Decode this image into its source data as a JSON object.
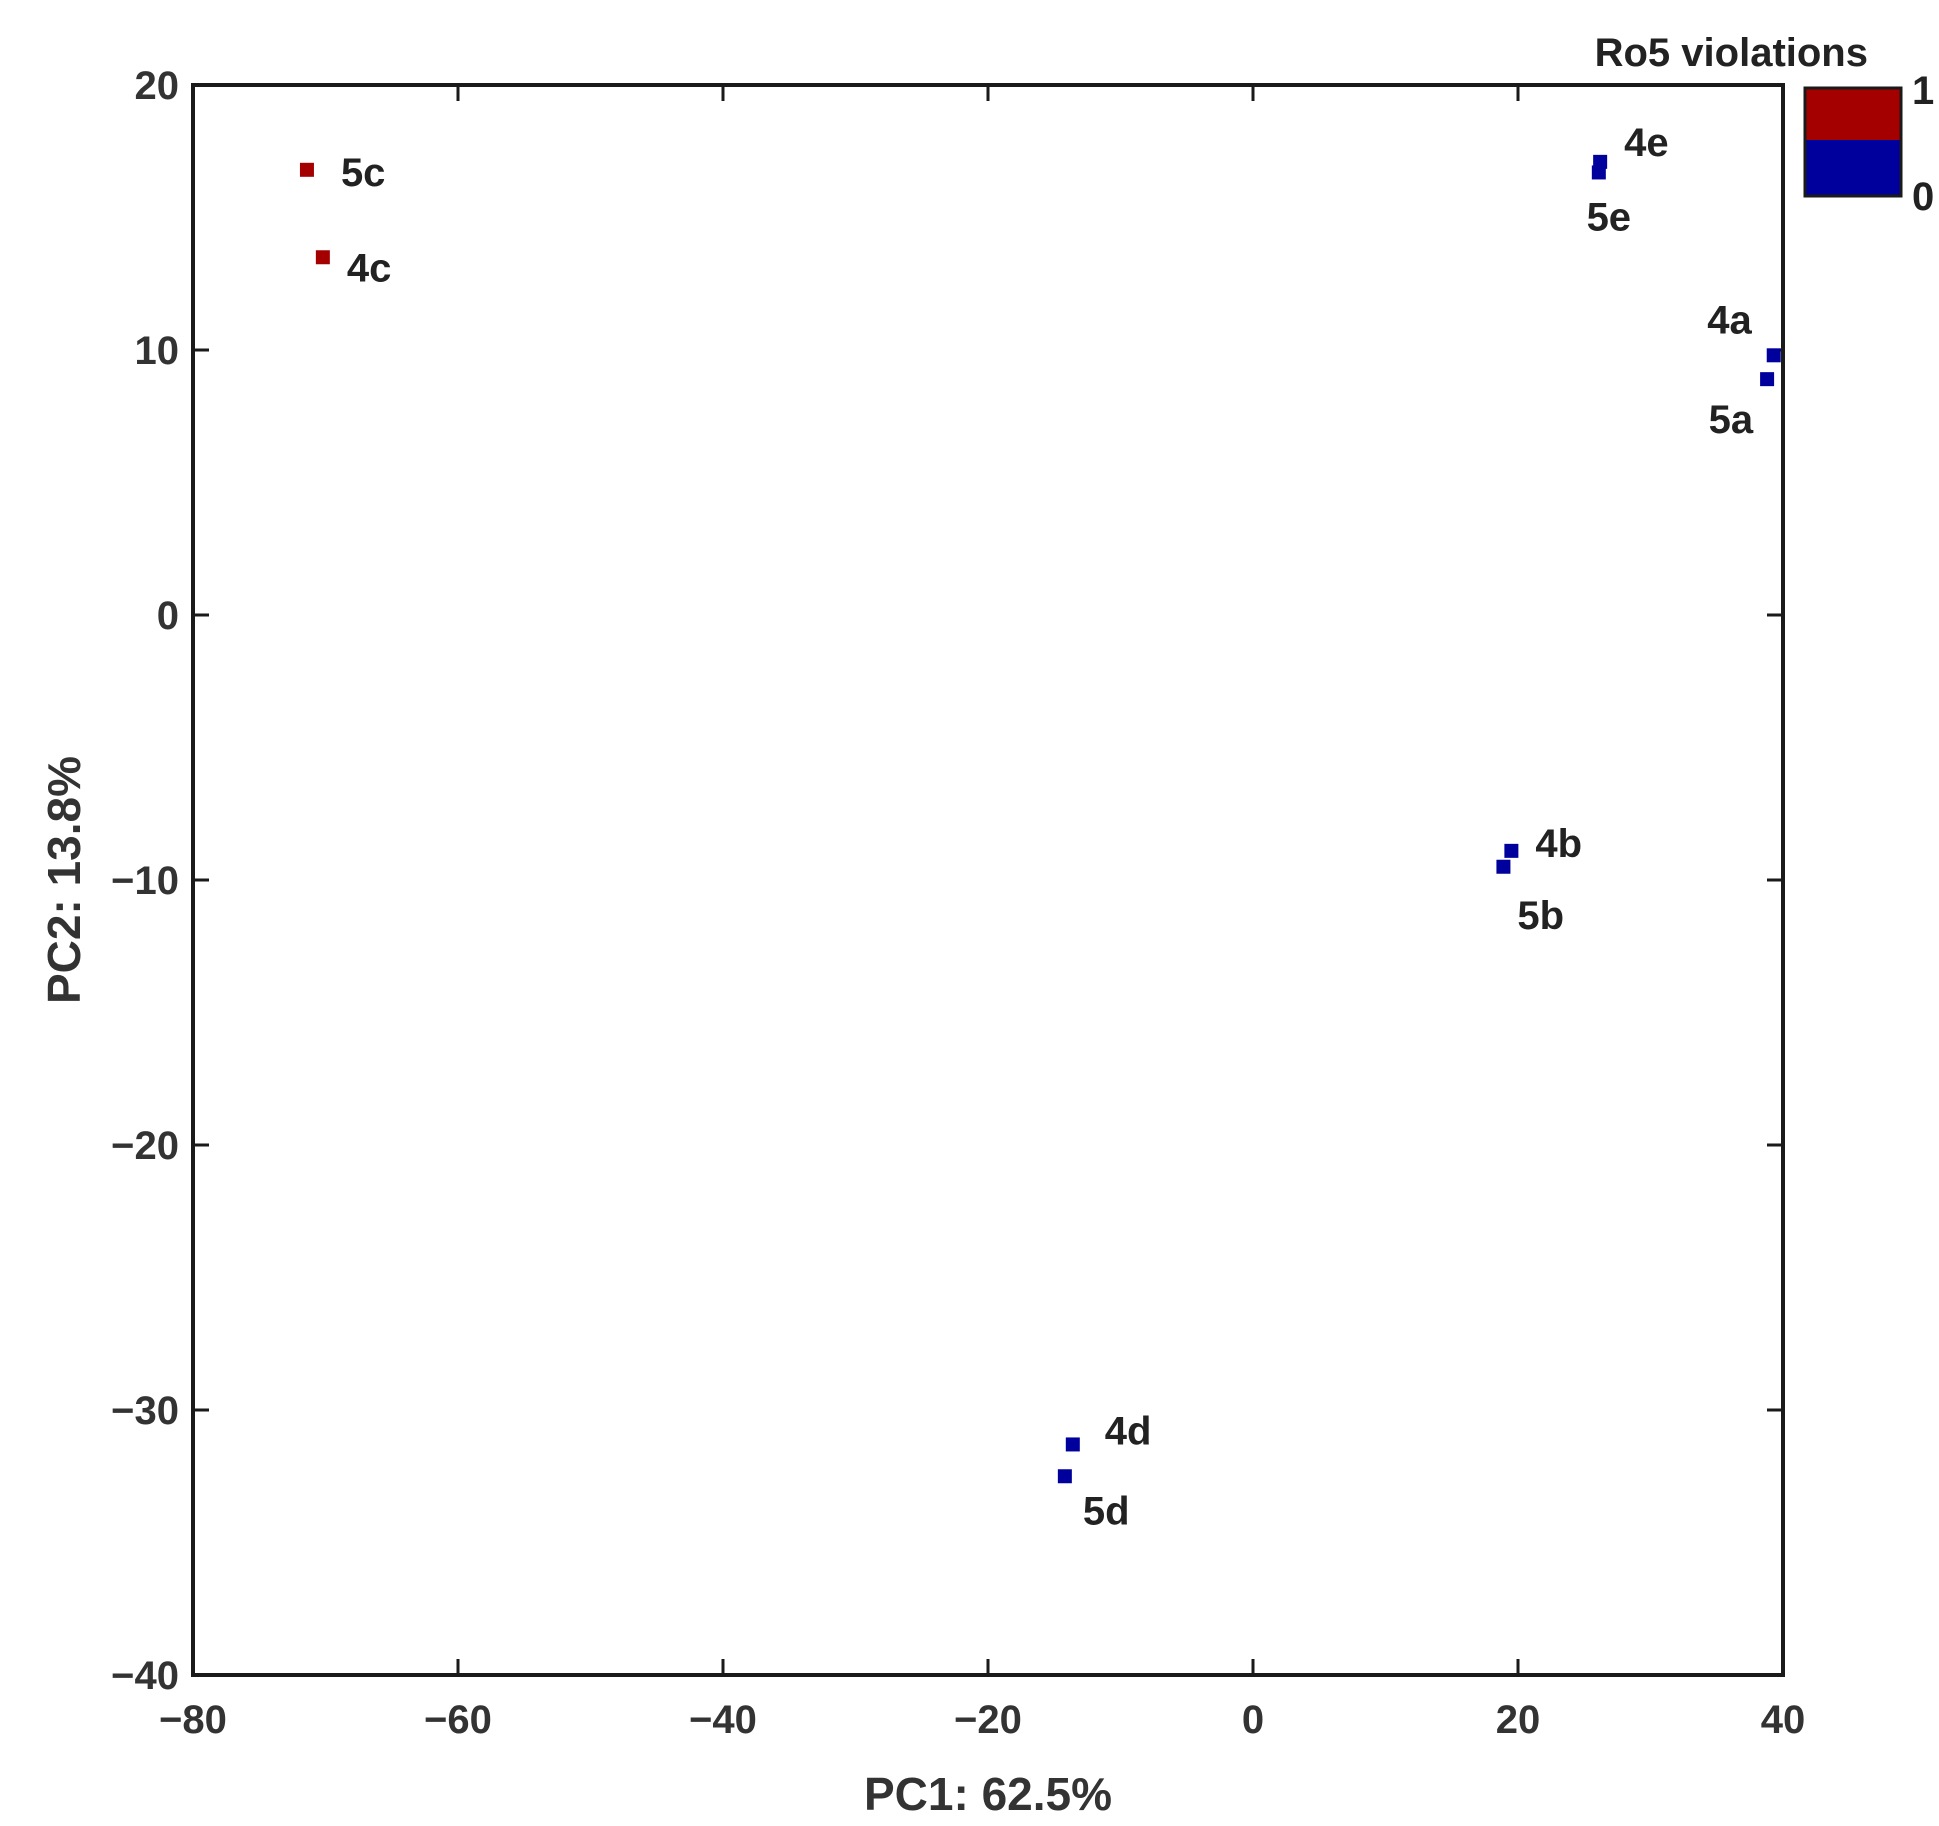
{
  "chart_data": {
    "type": "scatter",
    "xlabel": "PC1: 62.5%",
    "ylabel": "PC2: 13.8%",
    "xlim": [
      -80,
      40
    ],
    "ylim": [
      -40,
      20
    ],
    "xticks": [
      -80,
      -60,
      -40,
      -20,
      0,
      20,
      40
    ],
    "yticks": [
      20,
      10,
      0,
      -10,
      -20,
      -30,
      -40
    ],
    "xtick_labels": [
      "−80",
      "−60",
      "−40",
      "−20",
      "0",
      "20",
      "40"
    ],
    "ytick_labels": [
      "20",
      "10",
      "0",
      "−10",
      "−20",
      "−30",
      "−40"
    ],
    "grid": false,
    "colorbar": {
      "title": "Ro5 violations",
      "ticks": [
        "1",
        "0"
      ],
      "colors": {
        "1": "#a50000",
        "0": "#00009c"
      }
    },
    "points": [
      {
        "label": "5c",
        "x": -71.4,
        "y": 16.8,
        "violations": 1
      },
      {
        "label": "4c",
        "x": -70.2,
        "y": 13.5,
        "violations": 1
      },
      {
        "label": "4e",
        "x": 26.2,
        "y": 17.1,
        "violations": 0
      },
      {
        "label": "5e",
        "x": 26.1,
        "y": 16.7,
        "violations": 0
      },
      {
        "label": "4a",
        "x": 39.3,
        "y": 9.8,
        "violations": 0
      },
      {
        "label": "5a",
        "x": 38.8,
        "y": 8.9,
        "violations": 0
      },
      {
        "label": "4b",
        "x": 19.5,
        "y": -8.9,
        "violations": 0
      },
      {
        "label": "5b",
        "x": 18.9,
        "y": -9.5,
        "violations": 0
      },
      {
        "label": "4d",
        "x": -13.6,
        "y": -31.3,
        "violations": 0
      },
      {
        "label": "5d",
        "x": -14.2,
        "y": -32.5,
        "violations": 0
      }
    ]
  }
}
